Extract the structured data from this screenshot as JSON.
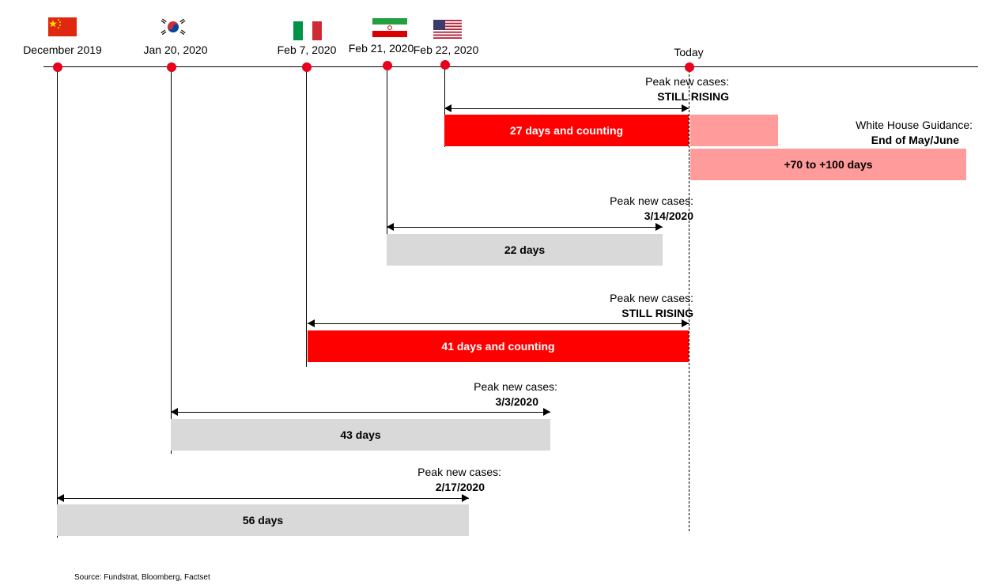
{
  "timeline": {
    "dates": [
      {
        "id": "china",
        "label": "December 2019",
        "flag_icon": "china-flag-icon"
      },
      {
        "id": "korea",
        "label": "Jan 20, 2020",
        "flag_icon": "south-korea-flag-icon"
      },
      {
        "id": "italy",
        "label": "Feb 7, 2020",
        "flag_icon": "italy-flag-icon"
      },
      {
        "id": "iran",
        "label": "Feb 21, 2020",
        "flag_icon": "iran-flag-icon"
      },
      {
        "id": "usa",
        "label": "Feb 22, 2020",
        "flag_icon": "usa-flag-icon"
      },
      {
        "id": "today",
        "label": "Today"
      }
    ]
  },
  "bars": {
    "usa": {
      "label": "27 days and counting",
      "peak_title": "Peak new cases:",
      "peak_value": "STILL RISING"
    },
    "iran": {
      "label": "22 days",
      "peak_title": "Peak new cases:",
      "peak_value": "3/14/2020"
    },
    "italy": {
      "label": "41 days and counting",
      "peak_title": "Peak new cases:",
      "peak_value": "STILL RISING"
    },
    "korea": {
      "label": "43 days",
      "peak_title": "Peak new cases:",
      "peak_value": "3/3/2020"
    },
    "china": {
      "label": "56 days",
      "peak_title": "Peak new cases:",
      "peak_value": "2/17/2020"
    }
  },
  "guidance": {
    "title": "White House Guidance:",
    "value": "End of May/June",
    "range_label": "+70 to +100 days"
  },
  "source": "Source: Fundstrat, Bloomberg, Factset",
  "colors": {
    "marker": "#e8001c",
    "still_rising": "#ff0000",
    "peaked": "#d9d9d9",
    "projection": "#ff9b9b"
  }
}
